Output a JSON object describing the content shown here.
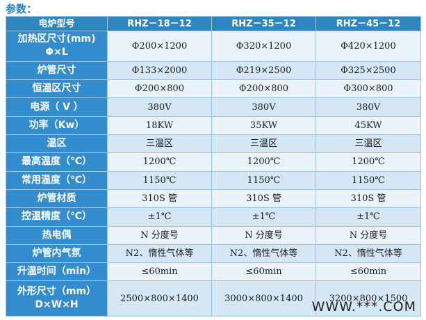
{
  "heading": "参数：",
  "header": [
    "电炉型号",
    "RHZ－18－12",
    "RHZ－35－12",
    "RHZ－45－12"
  ],
  "rows": [
    {
      "label": [
        "加热区尺寸(mm)",
        "Φ×L"
      ],
      "values": [
        "Φ200×1200",
        "Φ320×1200",
        "Φ420×1200"
      ]
    },
    {
      "label": [
        "炉管尺寸"
      ],
      "values": [
        "Φ133×2000",
        "Φ219×2500",
        "Φ325×2500"
      ]
    },
    {
      "label": [
        "恒温区尺寸"
      ],
      "values": [
        "Φ200×800",
        "Φ200×800",
        "Φ300×800"
      ]
    },
    {
      "label": [
        "电源（ V ）"
      ],
      "values": [
        "380V",
        "380V",
        "380V"
      ]
    },
    {
      "label": [
        "功率（Kw）"
      ],
      "values": [
        "18KW",
        "35KW",
        "45KW"
      ]
    },
    {
      "label": [
        "温区"
      ],
      "values": [
        "三温区",
        "三温区",
        "三温区"
      ]
    },
    {
      "label": [
        "最高温度（℃）"
      ],
      "values": [
        "1200℃",
        "1200℃",
        "1200℃"
      ]
    },
    {
      "label": [
        "常用温度（℃）"
      ],
      "values": [
        "1150℃",
        "1150℃",
        "1150℃"
      ]
    },
    {
      "label": [
        "炉管材质"
      ],
      "values": [
        "310S 管",
        "310S 管",
        "310S 管"
      ]
    },
    {
      "label": [
        "控温精度（℃）"
      ],
      "values": [
        "±1℃",
        "±1℃",
        "±1℃"
      ]
    },
    {
      "label": [
        "热电偶"
      ],
      "values": [
        "N 分度号",
        "N 分度号",
        "N 分度号"
      ]
    },
    {
      "label": [
        "炉管内气氛"
      ],
      "values": [
        "N2、惰性气体等",
        "N2、惰性气体等",
        "N2、惰性气体等"
      ]
    },
    {
      "label": [
        "升温时间（min）"
      ],
      "values": [
        "≤60min",
        "≤60min",
        "≤60min"
      ]
    },
    {
      "label": [
        "外形尺寸（mm）",
        "D×W×H"
      ],
      "values": [
        "2500×800×1400",
        "3000×800×1400",
        "3200×800×1500"
      ]
    }
  ],
  "watermark": "WWW.***.COM"
}
